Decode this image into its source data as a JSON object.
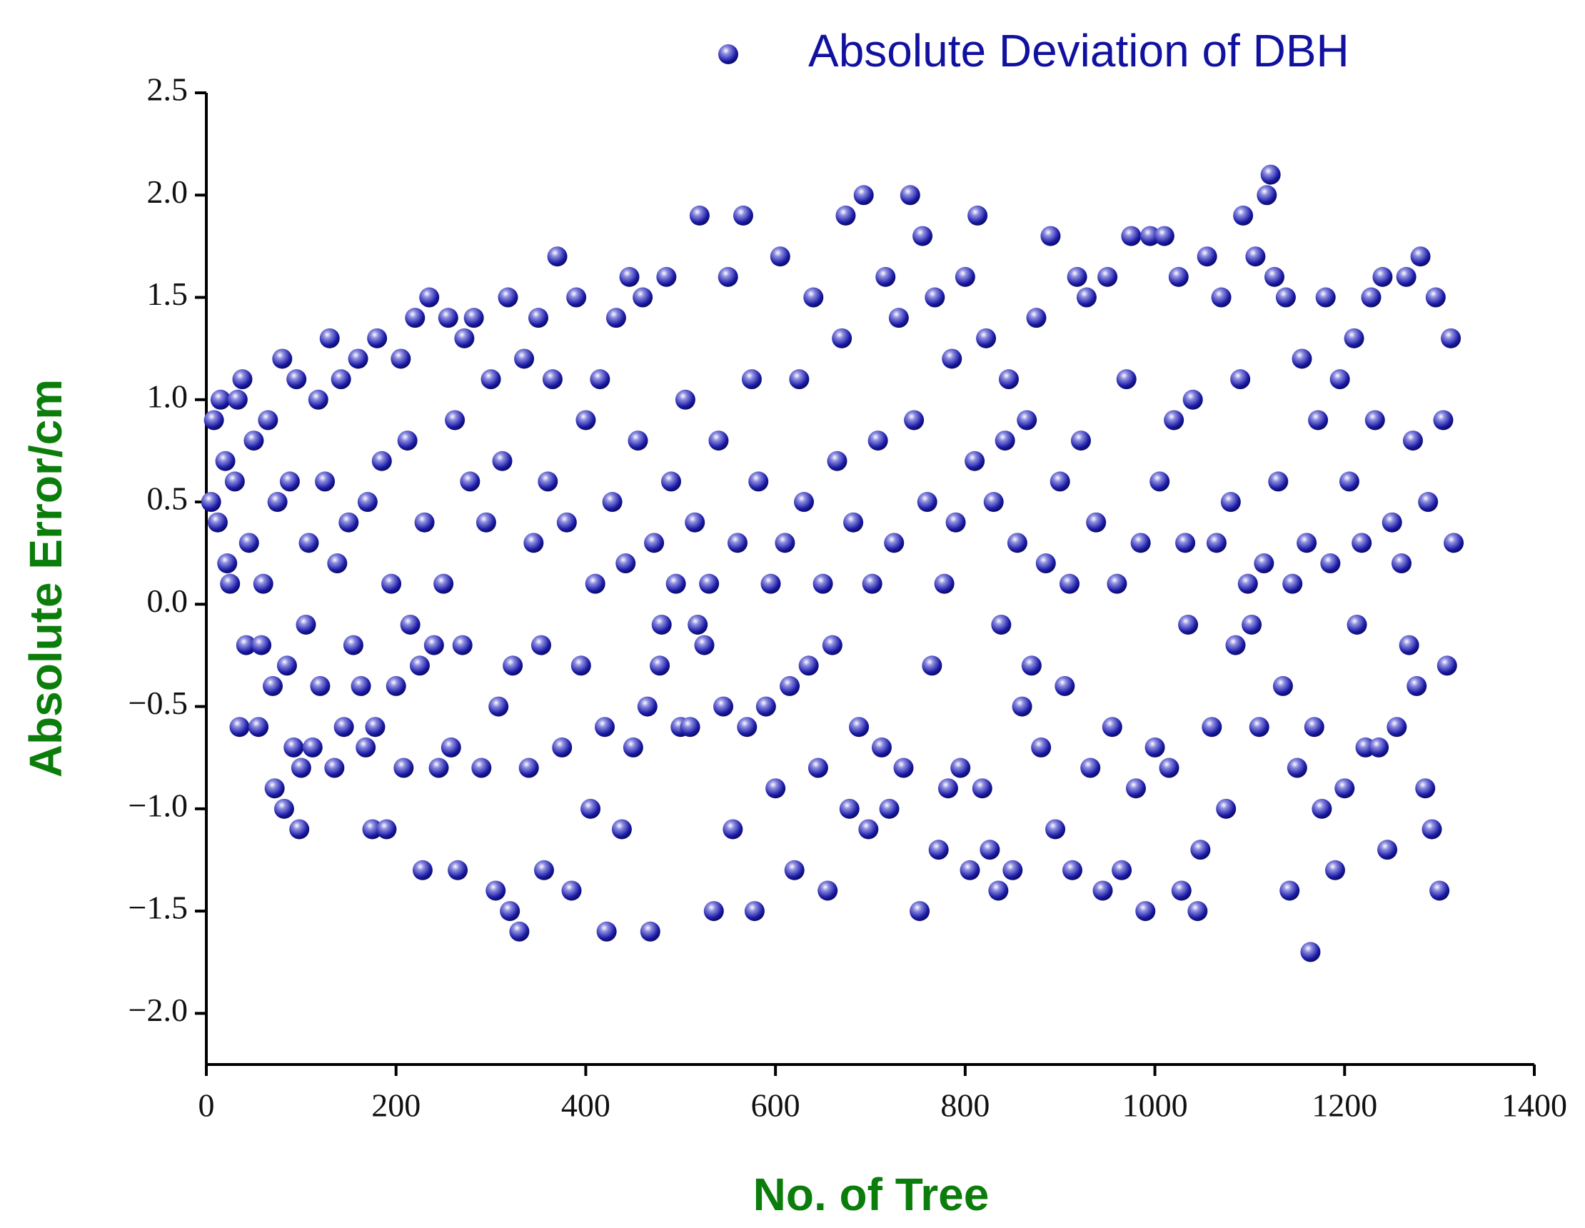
{
  "chart_data": {
    "type": "scatter",
    "x_label": "No. of Tree",
    "y_label": "Absolute Error/cm",
    "xlim": [
      0,
      1400
    ],
    "xticks": [
      0,
      200,
      400,
      600,
      800,
      1000,
      1200,
      1400
    ],
    "ylim": [
      -2.25,
      2.5
    ],
    "yticks": [
      {
        "value": -2.0,
        "label": "−2.0"
      },
      {
        "value": -1.5,
        "label": "−1.5"
      },
      {
        "value": -1.0,
        "label": "−1.0"
      },
      {
        "value": -0.5,
        "label": "−0.5"
      },
      {
        "value": 0.0,
        "label": "0.0"
      },
      0.5,
      {
        "value": 1.0,
        "label": "1.0"
      },
      1.5,
      {
        "value": 2.0,
        "label": "2.0"
      },
      2.5
    ],
    "legend": "top-right",
    "x": [
      5,
      8,
      12,
      15,
      20,
      22,
      25,
      30,
      33,
      35,
      38,
      42,
      45,
      50,
      55,
      58,
      60,
      65,
      70,
      72,
      75,
      80,
      82,
      85,
      88,
      92,
      95,
      98,
      100,
      105,
      108,
      112,
      118,
      120,
      125,
      130,
      135,
      138,
      142,
      145,
      150,
      155,
      160,
      163,
      168,
      170,
      175,
      178,
      180,
      185,
      190,
      195,
      200,
      205,
      208,
      212,
      215,
      220,
      225,
      228,
      230,
      235,
      240,
      245,
      250,
      255,
      258,
      262,
      265,
      270,
      272,
      278,
      282,
      290,
      295,
      300,
      305,
      308,
      312,
      318,
      320,
      323,
      330,
      335,
      340,
      345,
      350,
      353,
      356,
      360,
      365,
      370,
      375,
      380,
      385,
      390,
      395,
      400,
      405,
      410,
      415,
      420,
      422,
      428,
      432,
      438,
      442,
      446,
      450,
      455,
      460,
      465,
      468,
      472,
      478,
      480,
      485,
      490,
      495,
      500,
      505,
      510,
      515,
      518,
      520,
      525,
      530,
      535,
      540,
      545,
      550,
      555,
      560,
      566,
      570,
      575,
      578,
      582,
      590,
      595,
      600,
      605,
      610,
      615,
      620,
      625,
      630,
      635,
      640,
      645,
      650,
      655,
      660,
      665,
      670,
      674,
      678,
      682,
      688,
      693,
      698,
      702,
      708,
      712,
      716,
      720,
      725,
      730,
      735,
      742,
      746,
      752,
      755,
      760,
      765,
      768,
      772,
      778,
      782,
      786,
      790,
      795,
      800,
      805,
      810,
      813,
      818,
      822,
      826,
      830,
      835,
      838,
      842,
      846,
      850,
      855,
      860,
      865,
      870,
      875,
      880,
      885,
      890,
      895,
      900,
      905,
      910,
      913,
      918,
      922,
      928,
      932,
      938,
      945,
      950,
      955,
      960,
      965,
      970,
      975,
      980,
      985,
      990,
      995,
      1000,
      1005,
      1010,
      1015,
      1020,
      1025,
      1028,
      1032,
      1035,
      1040,
      1045,
      1048,
      1055,
      1060,
      1065,
      1070,
      1075,
      1080,
      1085,
      1090,
      1093,
      1098,
      1102,
      1106,
      1110,
      1115,
      1118,
      1122,
      1126,
      1130,
      1135,
      1138,
      1142,
      1145,
      1150,
      1155,
      1160,
      1164,
      1168,
      1172,
      1176,
      1180,
      1185,
      1190,
      1195,
      1200,
      1205,
      1210,
      1213,
      1218,
      1222,
      1228,
      1232,
      1236,
      1240,
      1245,
      1250,
      1255,
      1260,
      1265,
      1268,
      1272,
      1276,
      1280,
      1285,
      1288,
      1292,
      1296,
      1300,
      1304,
      1308,
      1312,
      1315
    ],
    "series": [
      {
        "name": "Absolute Deviation of DBH",
        "color": "#1a1aa6",
        "values": [
          0.5,
          0.9,
          0.4,
          1.0,
          0.7,
          0.2,
          0.1,
          0.6,
          1.0,
          -0.6,
          1.1,
          -0.2,
          0.3,
          0.8,
          -0.6,
          -0.2,
          0.1,
          0.9,
          -0.4,
          -0.9,
          0.5,
          1.2,
          -1.0,
          -0.3,
          0.6,
          -0.7,
          1.1,
          -1.1,
          -0.8,
          -0.1,
          0.3,
          -0.7,
          1.0,
          -0.4,
          0.6,
          1.3,
          -0.8,
          0.2,
          1.1,
          -0.6,
          0.4,
          -0.2,
          1.2,
          -0.4,
          -0.7,
          0.5,
          -1.1,
          -0.6,
          1.3,
          0.7,
          -1.1,
          0.1,
          -0.4,
          1.2,
          -0.8,
          0.8,
          -0.1,
          1.4,
          -0.3,
          -1.3,
          0.4,
          1.5,
          -0.2,
          -0.8,
          0.1,
          1.4,
          -0.7,
          0.9,
          -1.3,
          -0.2,
          1.3,
          0.6,
          1.4,
          -0.8,
          0.4,
          1.1,
          -1.4,
          -0.5,
          0.7,
          1.5,
          -1.5,
          -0.3,
          -1.6,
          1.2,
          -0.8,
          0.3,
          1.4,
          -0.2,
          -1.3,
          0.6,
          1.1,
          1.7,
          -0.7,
          0.4,
          -1.4,
          1.5,
          -0.3,
          0.9,
          -1.0,
          0.1,
          1.1,
          -0.6,
          -1.6,
          0.5,
          1.4,
          -1.1,
          0.2,
          1.6,
          -0.7,
          0.8,
          1.5,
          -0.5,
          -1.6,
          0.3,
          -0.3,
          -0.1,
          1.6,
          0.6,
          0.1,
          -0.6,
          1.0,
          -0.6,
          0.4,
          -0.1,
          1.9,
          -0.2,
          0.1,
          -1.5,
          0.8,
          -0.5,
          1.6,
          -1.1,
          0.3,
          1.9,
          -0.6,
          1.1,
          -1.5,
          0.6,
          -0.5,
          0.1,
          -0.9,
          1.7,
          0.3,
          -0.4,
          -1.3,
          1.1,
          0.5,
          -0.3,
          1.5,
          -0.8,
          0.1,
          -1.4,
          -0.2,
          0.7,
          1.3,
          1.9,
          -1.0,
          0.4,
          -0.6,
          2.0,
          -1.1,
          0.1,
          0.8,
          -0.7,
          1.6,
          -1.0,
          0.3,
          1.4,
          -0.8,
          2.0,
          0.9,
          -1.5,
          1.8,
          0.5,
          -0.3,
          1.5,
          -1.2,
          0.1,
          -0.9,
          1.2,
          0.4,
          -0.8,
          1.6,
          -1.3,
          0.7,
          1.9,
          -0.9,
          1.3,
          -1.2,
          0.5,
          -1.4,
          -0.1,
          0.8,
          1.1,
          -1.3,
          0.3,
          -0.5,
          0.9,
          -0.3,
          1.4,
          -0.7,
          0.2,
          1.8,
          -1.1,
          0.6,
          -0.4,
          0.1,
          -1.3,
          1.6,
          0.8,
          1.5,
          -0.8,
          0.4,
          -1.4,
          1.6,
          -0.6,
          0.1,
          -1.3,
          1.1,
          1.8,
          -0.9,
          0.3,
          -1.5,
          1.8,
          -0.7,
          0.6,
          1.8,
          -0.8,
          0.9,
          1.6,
          -1.4,
          0.3,
          -0.1,
          1.0,
          -1.5,
          -1.2,
          1.7,
          -0.6,
          0.3,
          1.5,
          -1.0,
          0.5,
          -0.2,
          1.1,
          1.9,
          0.1,
          -0.1,
          1.7,
          -0.6,
          0.2,
          2.0,
          2.1,
          1.6,
          0.6,
          -0.4,
          1.5,
          -1.4,
          0.1,
          -0.8,
          1.2,
          0.3,
          -1.7,
          -0.6,
          0.9,
          -1.0,
          1.5,
          0.2,
          -1.3,
          1.1,
          -0.9,
          0.6,
          1.3,
          -0.1,
          0.3,
          -0.7,
          1.5,
          0.9,
          -0.7,
          1.6,
          -1.2,
          0.4,
          -0.6,
          0.2,
          1.6,
          -0.2,
          0.8,
          -0.4,
          1.7,
          -0.9,
          0.5,
          -1.1,
          1.5,
          -1.4,
          0.9,
          -0.3,
          1.3,
          0.3
        ]
      }
    ]
  }
}
